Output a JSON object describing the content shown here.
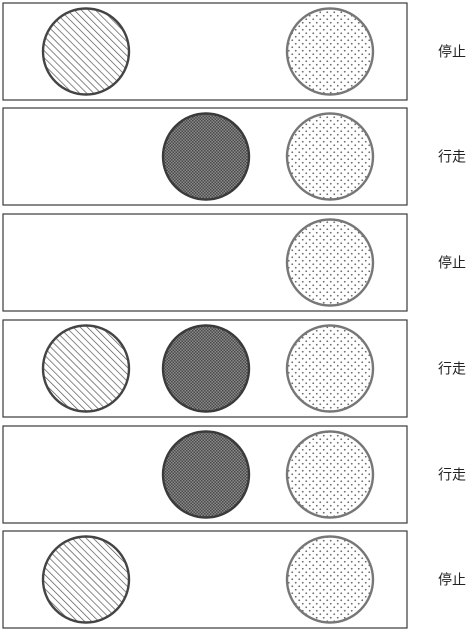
{
  "panels": [
    {
      "status": "停止",
      "lamps": [
        {
          "pattern": "hatched",
          "lit": true
        },
        {
          "pattern": "crosshatch",
          "lit": false
        },
        {
          "pattern": "dotted",
          "lit": true
        }
      ]
    },
    {
      "status": "行走",
      "lamps": [
        {
          "pattern": "hatched",
          "lit": false
        },
        {
          "pattern": "crosshatch",
          "lit": true
        },
        {
          "pattern": "dotted",
          "lit": true
        }
      ]
    },
    {
      "status": "停止",
      "lamps": [
        {
          "pattern": "hatched",
          "lit": false
        },
        {
          "pattern": "crosshatch",
          "lit": false
        },
        {
          "pattern": "dotted",
          "lit": true
        }
      ]
    },
    {
      "status": "行走",
      "lamps": [
        {
          "pattern": "hatched",
          "lit": true
        },
        {
          "pattern": "crosshatch",
          "lit": true
        },
        {
          "pattern": "dotted",
          "lit": true
        }
      ]
    },
    {
      "status": "行走",
      "lamps": [
        {
          "pattern": "hatched",
          "lit": false
        },
        {
          "pattern": "crosshatch",
          "lit": true
        },
        {
          "pattern": "dotted",
          "lit": true
        }
      ]
    },
    {
      "status": "停止",
      "lamps": [
        {
          "pattern": "hatched",
          "lit": true
        },
        {
          "pattern": "crosshatch",
          "lit": false
        },
        {
          "pattern": "dotted",
          "lit": true
        }
      ]
    }
  ],
  "colors": {
    "hatched_stroke": "#444444",
    "crosshatch_stroke": "#3a3a3a",
    "dotted_stroke": "#777777",
    "hatch_line": "#555555",
    "crosshatch_ink": "#5a5a5a",
    "dot_ink": "#6a6a6a"
  }
}
